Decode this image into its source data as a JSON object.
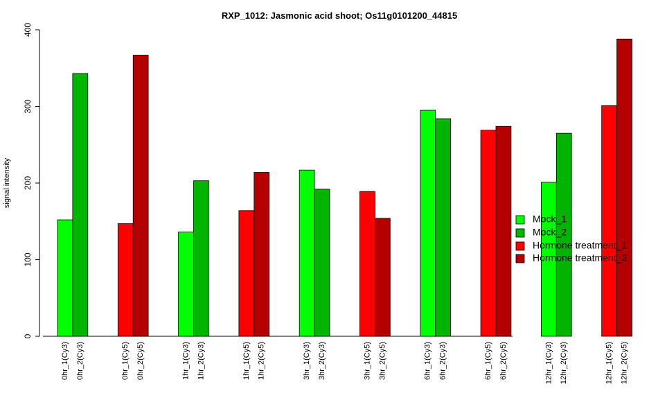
{
  "chart_data": {
    "type": "bar",
    "title": "RXP_1012: Jasmonic acid shoot; Os11g0101200_44815",
    "xlabel": "",
    "ylabel": "signal intensity",
    "ylim": [
      0,
      400
    ],
    "yticks": [
      0,
      100,
      200,
      300,
      400
    ],
    "grid": false,
    "legend_position": "right",
    "groups": [
      "0hr",
      "0hr",
      "1hr",
      "1hr",
      "3hr",
      "3hr",
      "6hr",
      "6hr",
      "12hr",
      "12hr"
    ],
    "categories": [
      "0hr_1(Cy3)",
      "0hr_2(Cy3)",
      "0hr_1(Cy5)",
      "0hr_2(Cy5)",
      "1hr_1(Cy3)",
      "1hr_2(Cy3)",
      "1hr_1(Cy5)",
      "1hr_2(Cy5)",
      "3hr_1(Cy3)",
      "3hr_2(Cy3)",
      "3hr_1(Cy5)",
      "3hr_2(Cy5)",
      "6hr_1(Cy3)",
      "6hr_2(Cy3)",
      "6hr_1(Cy5)",
      "6hr_2(Cy5)",
      "12hr_1(Cy3)",
      "12hr_2(Cy3)",
      "12hr_1(Cy5)",
      "12hr_2(Cy5)"
    ],
    "values": [
      152,
      343,
      147,
      367,
      136,
      203,
      164,
      214,
      217,
      192,
      189,
      154,
      295,
      284,
      269,
      274,
      201,
      265,
      301,
      388
    ],
    "bar_series": [
      0,
      1,
      2,
      3,
      0,
      1,
      2,
      3,
      0,
      1,
      2,
      3,
      0,
      1,
      2,
      3,
      0,
      1,
      2,
      3
    ],
    "series": [
      {
        "name": "Mock_1",
        "color": "#00FF00"
      },
      {
        "name": "Mock_2",
        "color": "#00B400"
      },
      {
        "name": "Hormone treatment_1",
        "color": "#FF0000"
      },
      {
        "name": "Hormone treatment_2",
        "color": "#B40000"
      }
    ]
  }
}
